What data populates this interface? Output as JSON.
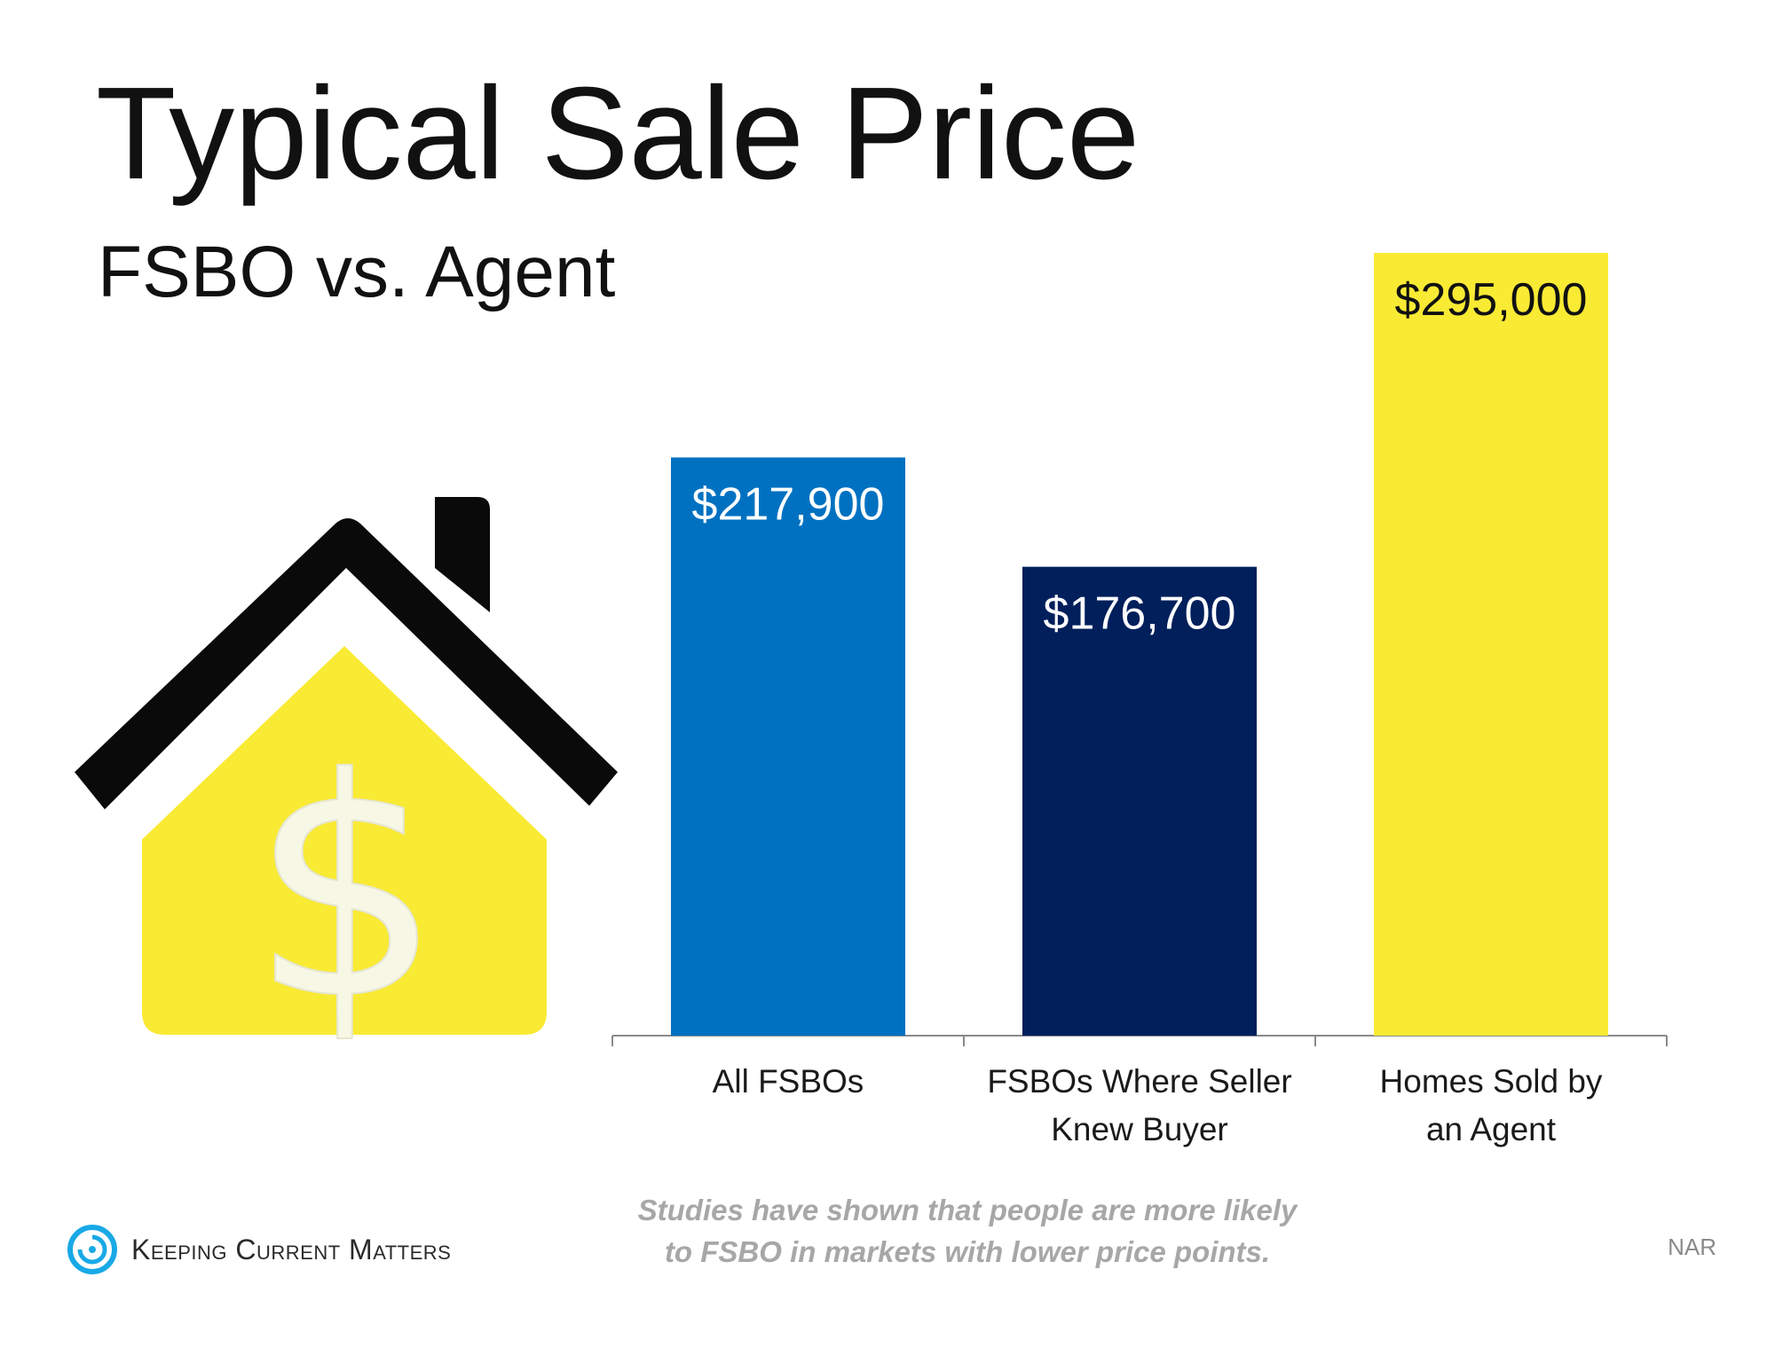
{
  "colors": {
    "all_fsbos": "#0071c1",
    "seller_knew_buyer": "#001f5b",
    "agent": "#f9ea34",
    "house_yellow": "#f9ea34",
    "roof_black": "#0a0a0a",
    "brand_blue": "#19a9e6"
  },
  "chart_data": {
    "type": "bar",
    "title": "Typical Sale Price",
    "subtitle": "FSBO vs. Agent",
    "categories": [
      "All FSBOs",
      "FSBOs Where Seller\nKnew Buyer",
      "Homes Sold by\nan Agent"
    ],
    "values": [
      217900,
      176700,
      295000
    ],
    "data_labels": [
      "$217,900",
      "$176,700",
      "$295,000"
    ],
    "ylim": [
      0,
      300000
    ],
    "grid": false,
    "legend": "none",
    "xlabel": "",
    "ylabel": ""
  },
  "footnote": "Studies have shown that people are more likely\nto FSBO in markets with lower price points.",
  "source": "NAR",
  "brand": {
    "name": "Keeping Current Matters",
    "logo_icon": "swirl-icon"
  },
  "decor": {
    "house_icon": "house-dollar-icon",
    "dollar_glyph": "$"
  }
}
